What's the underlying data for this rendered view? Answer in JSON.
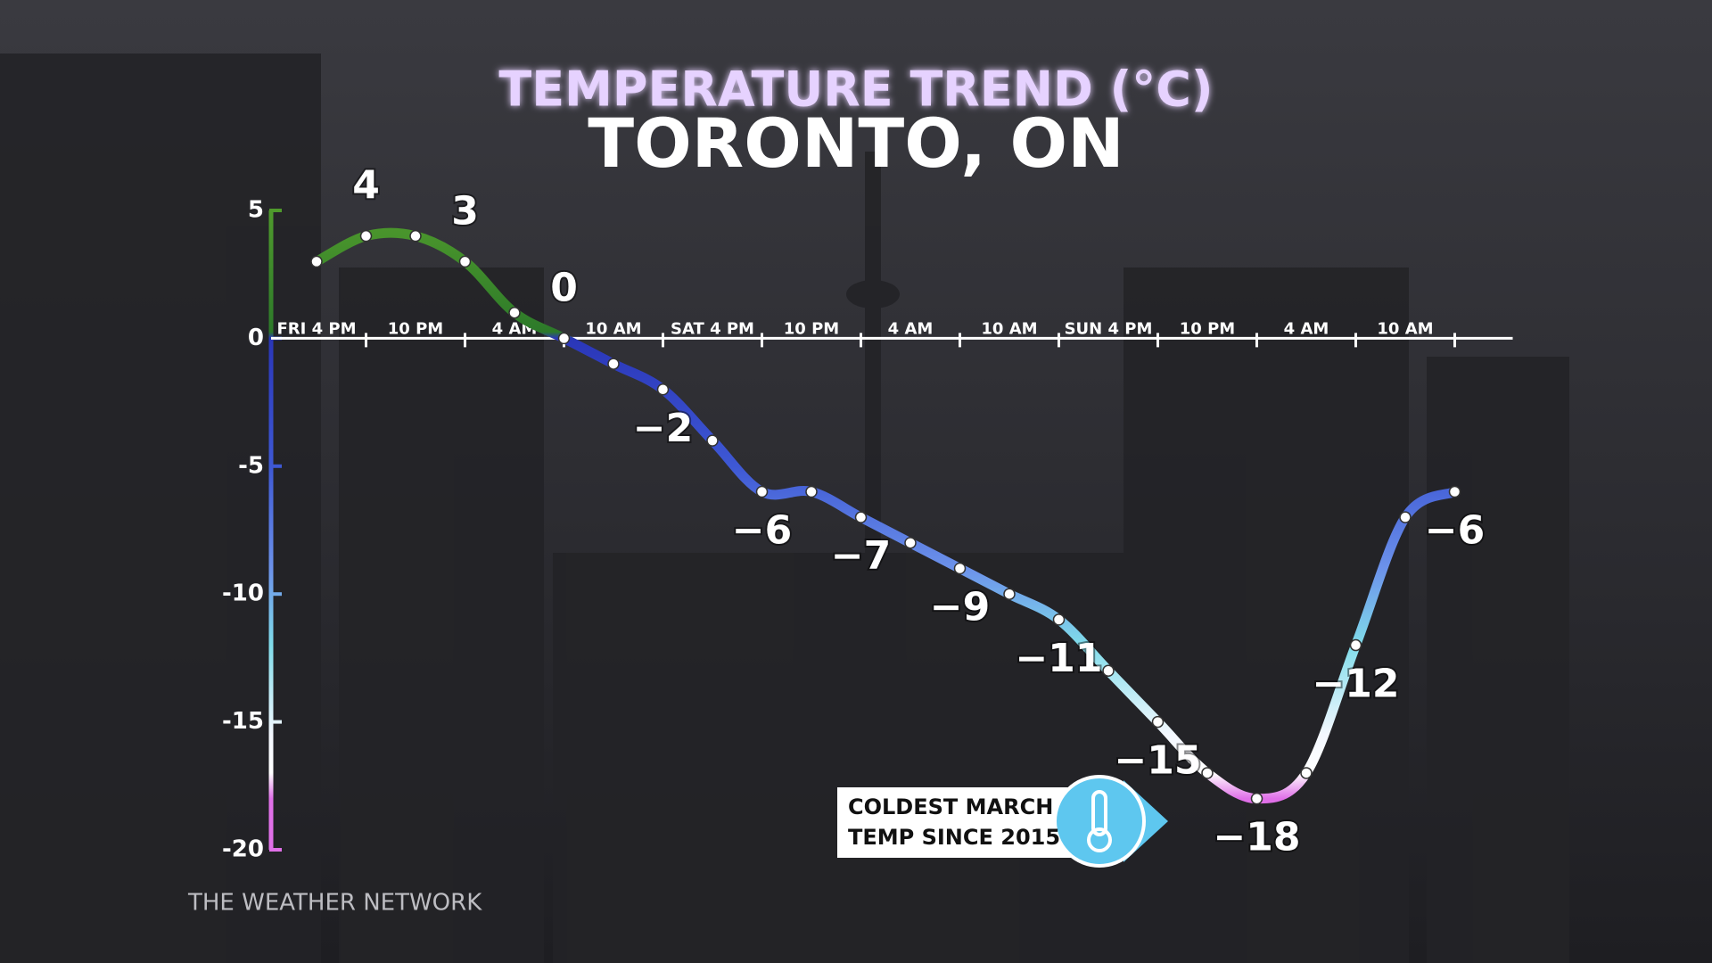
{
  "chart_data": {
    "type": "line",
    "title": "TEMPERATURE TREND (°C)",
    "subtitle": "TORONTO, ON",
    "categories": [
      "FRI 4 PM",
      null,
      "10 PM",
      null,
      "4 AM",
      null,
      "10 AM",
      null,
      "SAT 4 PM",
      null,
      "10 PM",
      null,
      "4 AM",
      null,
      "10 AM",
      null,
      "SUN 4 PM",
      null,
      "10 PM",
      null,
      "4 AM",
      null,
      "10 AM",
      null
    ],
    "values": [
      3,
      4,
      4,
      3,
      1,
      0,
      -1,
      -2,
      -4,
      -6,
      -6,
      -7,
      -8,
      -9,
      -10,
      -11,
      -13,
      -15,
      -17,
      -18,
      -17,
      -12,
      -7,
      -6
    ],
    "value_labels": [
      null,
      "4",
      null,
      "3",
      null,
      "0",
      null,
      "−2",
      null,
      "−6",
      null,
      "−7",
      null,
      "−9",
      null,
      "−11",
      null,
      "−15",
      null,
      "−18",
      null,
      "−12",
      null,
      "−6"
    ],
    "ylim": [
      -20,
      5
    ],
    "yticks": [
      5,
      0,
      -5,
      -10,
      -15,
      -20
    ],
    "annotation": [
      "COLDEST MARCH",
      "TEMP SINCE 2015"
    ],
    "source": "THE WEATHER NETWORK"
  }
}
